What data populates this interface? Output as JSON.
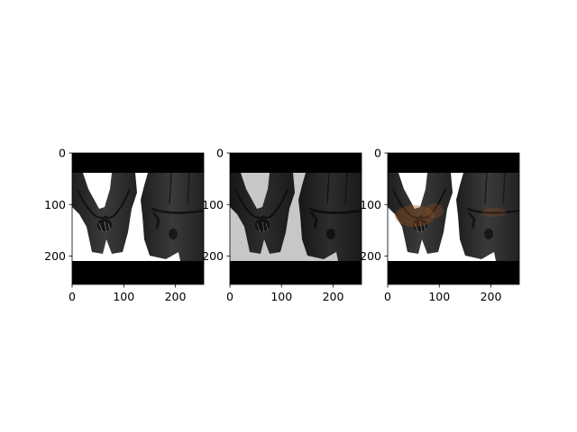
{
  "chart_data": [
    {
      "type": "image",
      "x_ticks": [
        0,
        100,
        200
      ],
      "y_ticks": [
        0,
        100,
        200
      ],
      "xlim": [
        0,
        255
      ],
      "ylim": [
        255,
        0
      ],
      "content": "grayscale photo of two people in dark coats, letterboxed with black bands"
    },
    {
      "type": "image",
      "x_ticks": [
        0,
        100,
        200
      ],
      "y_ticks": [
        0,
        100,
        200
      ],
      "xlim": [
        0,
        255
      ],
      "ylim": [
        255,
        0
      ],
      "content": "darker reconstruction of the same photo"
    },
    {
      "type": "image",
      "x_ticks": [
        0,
        100,
        200
      ],
      "y_ticks": [
        0,
        100,
        200
      ],
      "xlim": [
        0,
        255
      ],
      "ylim": [
        255,
        0
      ],
      "content": "same photo with faint orange overlay near the hands"
    }
  ],
  "colors": {
    "background": "#ffffff",
    "band": "#000000",
    "coat": "#2b2b2b",
    "overlay": "#a0521e"
  }
}
